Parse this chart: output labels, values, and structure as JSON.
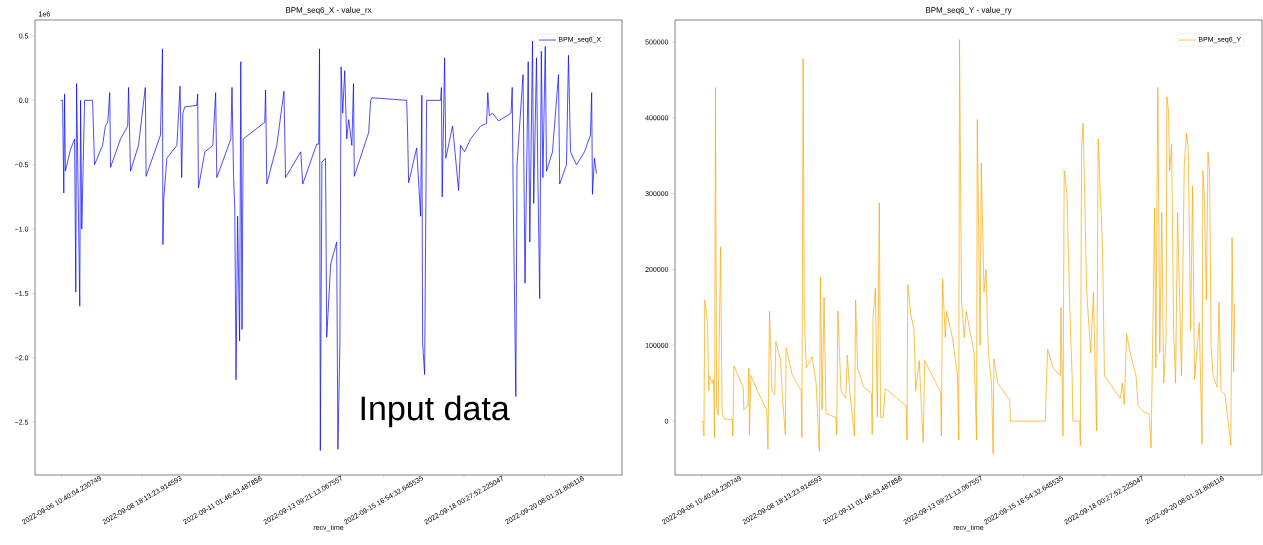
{
  "chart_data": [
    {
      "type": "line",
      "title": "BPM_seq6_X - value_rx",
      "xlabel": "recv_time",
      "legend": "top right",
      "marker": "none",
      "line_style": "solid",
      "annotations": [
        "1e6",
        "Input data"
      ],
      "xlim": [
        "2022-09-05T16:19",
        "2022-09-22T13:31"
      ],
      "ylim": [
        -2.91,
        0.624
      ],
      "xticks": [
        {
          "value": "2022-09-06T10:40",
          "label": "2022-09-06 10:40:04.230749"
        },
        {
          "value": "2022-09-08T18:13",
          "label": "2022-09-08 18:13:23.914593"
        },
        {
          "value": "2022-09-11T01:46",
          "label": "2022-09-11 01:46:43.487856"
        },
        {
          "value": "2022-09-13T09:21",
          "label": "2022-09-13 09:21:13.067557"
        },
        {
          "value": "2022-09-15T16:54",
          "label": "2022-09-15 16:54:32.645535"
        },
        {
          "value": "2022-09-18T00:27",
          "label": "2022-09-18 00:27:52.225047"
        },
        {
          "value": "2022-09-20T08:01",
          "label": "2022-09-20 08:01:31.806116"
        }
      ],
      "yticks": [
        {
          "value": -2.5,
          "label": "−2.5"
        },
        {
          "value": -2.0,
          "label": "−2.0"
        },
        {
          "value": -1.5,
          "label": "−1.5"
        },
        {
          "value": -1.0,
          "label": "−1.0"
        },
        {
          "value": -0.5,
          "label": "−0.5"
        },
        {
          "value": 0,
          "label": "0.0"
        },
        {
          "value": 0.5,
          "label": "0.5"
        }
      ],
      "x": [
        "2022-09-06T09:59",
        "2022-09-06T11:21",
        "2022-09-06T12:11",
        "2022-09-06T12:44",
        "2022-09-06T13:17",
        "2022-09-06T16:52",
        "2022-09-06T19:38",
        "2022-09-06T20:28",
        "2022-09-06T21:01",
        "2022-09-06T21:50",
        "2022-09-06T23:13",
        "2022-09-06T23:46",
        "2022-09-07T00:36",
        "2022-09-07T02:32",
        "2022-09-07T08:03",
        "2022-09-07T08:36",
        "2022-09-07T09:25",
        "2022-09-07T14:56",
        "2022-09-07T16:52",
        "2022-09-07T18:32",
        "2022-09-07T19:54",
        "2022-09-07T20:27",
        "2022-09-08T03:21",
        "2022-09-08T08:19",
        "2022-09-08T08:52",
        "2022-09-08T10:15",
        "2022-09-08T15:46",
        "2022-09-08T20:27",
        "2022-09-08T21:00",
        "2022-09-09T06:56",
        "2022-09-09T08:19",
        "2022-09-09T08:36",
        "2022-09-09T09:09",
        "2022-09-09T11:21",
        "2022-09-09T18:15",
        "2022-09-09T20:27",
        "2022-09-09T21:33",
        "2022-09-09T22:23",
        "2022-09-09T23:46",
        "2022-09-10T08:02",
        "2022-09-10T08:35",
        "2022-09-10T09:08",
        "2022-09-10T13:33",
        "2022-09-10T19:04",
        "2022-09-10T21:00",
        "2022-09-10T21:49",
        "2022-09-11T07:29",
        "2022-09-11T08:18",
        "2022-09-11T09:24",
        "2022-09-11T10:14",
        "2022-09-11T11:04",
        "2022-09-11T12:10",
        "2022-09-11T13:33",
        "2022-09-11T14:22",
        "2022-09-11T15:12",
        "2022-09-11T16:02",
        "2022-09-12T06:56",
        "2022-09-12T07:29",
        "2022-09-12T08:19",
        "2022-09-12T15:12",
        "2022-09-12T20:10",
        "2022-09-12T21:16",
        "2022-09-13T07:45",
        "2022-09-13T09:08",
        "2022-09-13T18:47",
        "2022-09-13T20:10",
        "2022-09-13T20:43",
        "2022-09-13T21:16",
        "2022-09-13T22:22",
        "2022-09-14T00:51",
        "2022-09-14T01:41",
        "2022-09-14T04:26",
        "2022-09-14T08:34",
        "2022-09-14T09:24",
        "2022-09-14T10:47",
        "2022-09-14T11:36",
        "2022-09-14T12:43",
        "2022-09-14T14:05",
        "2022-09-14T15:28",
        "2022-09-14T16:51",
        "2022-09-14T19:03",
        "2022-09-14T20:10",
        "2022-09-14T20:43",
        "2022-09-15T06:38",
        "2022-09-15T08:01",
        "2022-09-15T08:51",
        "2022-09-16T08:51",
        "2022-09-16T09:24",
        "2022-09-16T10:14",
        "2022-09-16T15:45",
        "2022-09-16T18:30",
        "2022-09-16T19:20",
        "2022-09-16T19:53",
        "2022-09-16T21:16",
        "2022-09-16T22:38",
        "2022-09-17T08:18",
        "2022-09-17T08:51",
        "2022-09-17T09:24",
        "2022-09-17T11:03",
        "2022-09-17T11:53",
        "2022-09-17T16:34",
        "2022-09-17T20:43",
        "2022-09-17T22:05",
        "2022-09-18T00:51",
        "2022-09-18T04:59",
        "2022-09-18T11:53",
        "2022-09-18T16:01",
        "2022-09-18T16:51",
        "2022-09-18T17:57",
        "2022-09-18T20:10",
        "2022-09-19T00:18",
        "2022-09-19T08:55",
        "2022-09-19T09:44",
        "2022-09-19T10:17",
        "2022-09-19T12:13",
        "2022-09-19T13:03",
        "2022-09-19T17:11",
        "2022-09-19T18:34",
        "2022-09-19T20:46",
        "2022-09-19T21:52",
        "2022-09-19T23:45",
        "2022-09-20T00:34",
        "2022-09-20T02:30",
        "2022-09-20T03:20",
        "2022-09-20T04:42",
        "2022-09-20T05:49",
        "2022-09-20T06:55",
        "2022-09-20T08:34",
        "2022-09-20T09:24",
        "2022-09-20T13:32",
        "2022-09-20T17:40",
        "2022-09-20T18:30",
        "2022-09-20T23:11",
        "2022-09-21T00:34",
        "2022-09-21T01:57",
        "2022-09-21T06:05",
        "2022-09-21T11:36",
        "2022-09-21T15:44",
        "2022-09-21T16:34",
        "2022-09-21T17:07",
        "2022-09-21T18:29",
        "2022-09-21T19:52"
      ],
      "series": [
        {
          "name": "BPM_seq6_X",
          "color": "#0000ff",
          "values": [
            0,
            0,
            -0.72,
            0.05,
            -0.55,
            -0.38,
            -0.3,
            -1.49,
            0.13,
            -0.5,
            -1.6,
            0,
            -1.0,
            0,
            0,
            -0.2,
            -0.5,
            -0.35,
            -0.2,
            -0.17,
            0.06,
            -0.52,
            -0.3,
            -0.2,
            0.1,
            -0.55,
            -0.35,
            0.1,
            -0.59,
            -0.27,
            0.4,
            -1.12,
            -0.77,
            -0.45,
            -0.35,
            0.11,
            -0.6,
            -0.1,
            -0.05,
            -0.04,
            0.05,
            -0.68,
            -0.4,
            -0.35,
            0.06,
            -0.6,
            -0.3,
            0.1,
            -0.6,
            -0.85,
            -2.17,
            -0.9,
            -1.87,
            0.3,
            -1.78,
            -0.3,
            -0.17,
            0.08,
            -0.65,
            -0.35,
            0.07,
            -0.6,
            -0.4,
            -0.65,
            -0.34,
            -0.34,
            0.4,
            -2.72,
            -0.48,
            -0.45,
            -1.84,
            -1.27,
            -1.1,
            -2.71,
            -1.9,
            0.26,
            -0.1,
            0.23,
            -0.3,
            -0.15,
            -0.35,
            0.13,
            -0.59,
            -0.25,
            0,
            0.02,
            0,
            -0.2,
            -0.64,
            -0.37,
            -0.9,
            0.04,
            -1.88,
            -2.13,
            0,
            0,
            0.1,
            -0.75,
            0.33,
            -0.45,
            -0.2,
            -0.7,
            -0.35,
            -0.4,
            -0.3,
            -0.2,
            -0.18,
            0.06,
            -0.12,
            -0.1,
            -0.16,
            -0.1,
            0.1,
            -0.62,
            -2.3,
            -0.5,
            0.2,
            -1.42,
            0.3,
            -1.1,
            0.46,
            -0.8,
            0.33,
            -0.5,
            -1.54,
            0.38,
            -0.6,
            0.45,
            -0.55,
            -0.4,
            0.2,
            -0.65,
            -0.5,
            0.35,
            -0.4,
            -0.5,
            -0.4,
            -0.27,
            0.06,
            -0.73,
            -0.45,
            -0.57
          ]
        }
      ]
    },
    {
      "type": "line",
      "title": "BPM_seq6_Y - value_ry",
      "xlabel": "recv_time",
      "legend": "top right",
      "marker": "none",
      "line_style": "solid",
      "xlim": [
        "2022-09-05T16:19",
        "2022-09-22T13:31"
      ],
      "ylim": [
        -71000,
        529000
      ],
      "xticks": [
        {
          "value": "2022-09-06T10:40",
          "label": "2022-09-06 10:40:04.230749"
        },
        {
          "value": "2022-09-08T18:13",
          "label": "2022-09-08 18:13:23.914593"
        },
        {
          "value": "2022-09-11T01:46",
          "label": "2022-09-11 01:46:43.487856"
        },
        {
          "value": "2022-09-13T09:21",
          "label": "2022-09-13 09:21:13.067557"
        },
        {
          "value": "2022-09-15T16:54",
          "label": "2022-09-15 16:54:32.645535"
        },
        {
          "value": "2022-09-18T00:27",
          "label": "2022-09-18 00:27:52.225047"
        },
        {
          "value": "2022-09-20T08:01",
          "label": "2022-09-20 08:01:31.806116"
        }
      ],
      "yticks": [
        0,
        100000,
        200000,
        300000,
        400000,
        500000
      ],
      "x": [
        "2022-09-06T10:40",
        "2022-09-06T11:29",
        "2022-09-06T12:18",
        "2022-09-06T12:51",
        "2022-09-06T14:45",
        "2022-09-06T15:34",
        "2022-09-06T16:07",
        "2022-09-06T18:02",
        "2022-09-06T18:51",
        "2022-09-06T19:40",
        "2022-09-06T20:13",
        "2022-09-06T21:02",
        "2022-09-06T22:07",
        "2022-09-06T23:45",
        "2022-09-07T00:51",
        "2022-09-07T02:29",
        "2022-09-07T07:56",
        "2022-09-07T08:12",
        "2022-09-07T09:02",
        "2022-09-07T15:18",
        "2022-09-07T15:51",
        "2022-09-07T18:34",
        "2022-09-07T19:23",
        "2022-09-07T19:40",
        "2022-09-07T20:45",
        "2022-09-08T03:34",
        "2022-09-08T07:39",
        "2022-09-08T08:28",
        "2022-09-08T09:34",
        "2022-09-08T11:12",
        "2022-09-08T13:07",
        "2022-09-08T13:56",
        "2022-09-08T17:12",
        "2022-09-08T18:34",
        "2022-09-08T20:28",
        "2022-09-08T21:01",
        "2022-09-09T01:23",
        "2022-09-09T07:23",
        "2022-09-09T07:55",
        "2022-09-09T08:45",
        "2022-09-09T09:34",
        "2022-09-09T10:55",
        "2022-09-09T15:01",
        "2022-09-09T17:44",
        "2022-09-09T19:55",
        "2022-09-09T20:44",
        "2022-09-09T21:50",
        "2022-09-09T23:12",
        "2022-09-10T00:33",
        "2022-09-10T07:22",
        "2022-09-10T07:55",
        "2022-09-10T08:44",
        "2022-09-10T10:55",
        "2022-09-10T14:11",
        "2022-09-10T15:17",
        "2022-09-10T16:55",
        "2022-09-10T20:11",
        "2022-09-10T21:00",
        "2022-09-10T22:22",
        "2022-09-11T02:28",
        "2022-09-11T07:55",
        "2022-09-11T08:28",
        "2022-09-11T09:00",
        "2022-09-11T10:38",
        "2022-09-11T12:00",
        "2022-09-11T13:22",
        "2022-09-11T14:11",
        "2022-09-11T16:06",
        "2022-09-11T17:27",
        "2022-09-12T07:54",
        "2022-09-12T08:27",
        "2022-09-12T09:00",
        "2022-09-12T11:11",
        "2022-09-12T13:22",
        "2022-09-12T14:27",
        "2022-09-12T16:54",
        "2022-09-12T18:00",
        "2022-09-12T19:38",
        "2022-09-12T20:43",
        "2022-09-13T07:38",
        "2022-09-13T08:10",
        "2022-09-13T09:00",
        "2022-09-13T10:54",
        "2022-09-13T11:43",
        "2022-09-13T15:49",
        "2022-09-13T19:21",
        "2022-09-13T20:10",
        "2022-09-13T20:43",
        "2022-09-13T22:05",
        "2022-09-13T23:59",
        "2022-09-14T01:21",
        "2022-09-14T06:48",
        "2022-09-14T08:27",
        "2022-09-14T08:59",
        "2022-09-14T10:54",
        "2022-09-14T11:43",
        "2022-09-14T13:37",
        "2022-09-14T14:59",
        "2022-09-14T16:37",
        "2022-09-14T18:48",
        "2022-09-14T19:54",
        "2022-09-14T20:26",
        "2022-09-14T23:10",
        "2022-09-15T07:21",
        "2022-09-15T07:53",
        "2022-09-16T07:53",
        "2022-09-16T08:42",
        "2022-09-16T09:31",
        "2022-09-16T13:20",
        "2022-09-16T18:15",
        "2022-09-16T18:48",
        "2022-09-16T20:09",
        "2022-09-16T20:58",
        "2022-09-16T22:53",
        "2022-09-17T00:48",
        "2022-09-17T02:26",
        "2022-09-17T02:58",
        "2022-09-17T07:37",
        "2022-09-17T08:09",
        "2022-09-17T08:58",
        "2022-09-17T10:04",
        "2022-09-17T12:31",
        "2022-09-17T15:15",
        "2022-09-17T17:09",
        "2022-09-17T19:20",
        "2022-09-17T20:25",
        "2022-09-17T23:25",
        "2022-09-18T00:47",
        "2022-09-18T08:58",
        "2022-09-18T11:42",
        "2022-09-18T13:03",
        "2022-09-18T14:25",
        "2022-09-18T16:03",
        "2022-09-18T18:31",
        "2022-09-18T22:36",
        "2022-09-18T23:58",
        "2022-09-19T04:03",
        "2022-09-19T07:36",
        "2022-09-19T08:58",
        "2022-09-19T11:25",
        "2022-09-19T12:14",
        "2022-09-19T13:36",
        "2022-09-19T14:58",
        "2022-09-19T16:19",
        "2022-09-19T17:41",
        "2022-09-19T19:19",
        "2022-09-19T19:52",
        "2022-09-19T20:58",
        "2022-09-19T21:47",
        "2022-09-19T23:08",
        "2022-09-20T00:30",
        "2022-09-20T01:52",
        "2022-09-20T03:14",
        "2022-09-20T05:57",
        "2022-09-20T07:52",
        "2022-09-20T09:30",
        "2022-09-20T10:36",
        "2022-09-20T12:14",
        "2022-09-20T13:35",
        "2022-09-20T14:57",
        "2022-09-20T18:14",
        "2022-09-20T20:08",
        "2022-09-20T20:41",
        "2022-09-20T21:47",
        "2022-09-20T23:08",
        "2022-09-21T00:14",
        "2022-09-21T01:19",
        "2022-09-21T02:24",
        "2022-09-21T03:46",
        "2022-09-21T06:30",
        "2022-09-21T07:52",
        "2022-09-21T09:13",
        "2022-09-21T11:57",
        "2022-09-21T16:02",
        "2022-09-21T16:51",
        "2022-09-21T17:57",
        "2022-09-21T18:46"
      ],
      "series": [
        {
          "name": "BPM_seq6_Y",
          "color": "#ffa500",
          "values": [
            0,
            0,
            -20000,
            160000,
            130000,
            40000,
            60000,
            50000,
            55000,
            -22000,
            440000,
            20000,
            8000,
            230000,
            10000,
            3000,
            2000,
            -20000,
            73000,
            45000,
            15000,
            20000,
            70000,
            -18000,
            60000,
            30000,
            15000,
            -37000,
            145000,
            40000,
            35000,
            105000,
            80000,
            30000,
            -18000,
            97000,
            60000,
            40000,
            -22000,
            478000,
            140000,
            70000,
            85000,
            50000,
            -40000,
            190000,
            15000,
            163000,
            10000,
            5000,
            -18000,
            145000,
            40000,
            30000,
            87000,
            40000,
            -20000,
            160000,
            70000,
            45000,
            37000,
            -18000,
            135000,
            175000,
            5000,
            288000,
            5000,
            5000,
            43000,
            20000,
            -25000,
            180000,
            140000,
            120000,
            40000,
            80000,
            35000,
            -28000,
            80000,
            38000,
            -20000,
            188000,
            110000,
            145000,
            110000,
            60000,
            -25000,
            503000,
            160000,
            110000,
            145000,
            90000,
            -25000,
            398000,
            100000,
            340000,
            170000,
            200000,
            90000,
            50000,
            -43000,
            82000,
            50000,
            28000,
            0,
            0,
            50000,
            95000,
            70000,
            60000,
            150000,
            -20000,
            330000,
            300000,
            150000,
            60000,
            0,
            0,
            -32000,
            360000,
            393000,
            170000,
            90000,
            170000,
            -13000,
            372000,
            230000,
            60000,
            37000,
            30000,
            50000,
            22000,
            115000,
            90000,
            60000,
            20000,
            12000,
            10000,
            -35000,
            281000,
            70000,
            440000,
            90000,
            275000,
            50000,
            110000,
            428000,
            410000,
            330000,
            365000,
            120000,
            50000,
            275000,
            60000,
            338000,
            380000,
            360000,
            120000,
            310000,
            55000,
            130000,
            -30000,
            330000,
            295000,
            160000,
            355000,
            330000,
            100000,
            60000,
            45000,
            157000,
            40000,
            35000,
            -32000,
            242000,
            65000,
            155000
          ]
        }
      ]
    }
  ]
}
